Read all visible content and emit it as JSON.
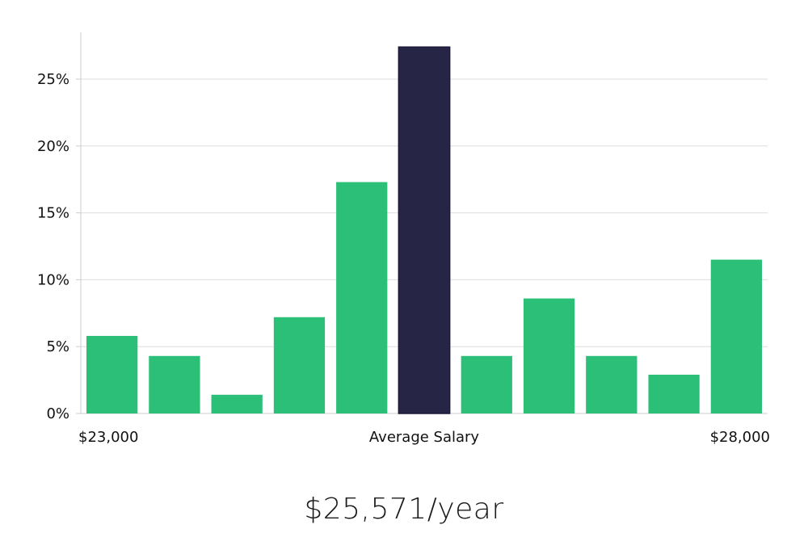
{
  "chart_data": {
    "type": "bar",
    "title": "",
    "ylabel": "",
    "ylim": [
      0,
      28.5
    ],
    "yticks": [
      0,
      5,
      10,
      15,
      20,
      25
    ],
    "ytick_labels": [
      "0%",
      "5%",
      "10%",
      "15%",
      "20%",
      "25%"
    ],
    "grid": true,
    "values": [
      5.8,
      4.3,
      1.4,
      7.2,
      17.3,
      27.4,
      4.3,
      8.6,
      4.3,
      2.9,
      11.5
    ],
    "highlight_index": 5,
    "x_label_left": "$23,000",
    "x_label_center": "Average Salary",
    "x_label_right": "$28,000"
  },
  "colors": {
    "bar": "#2bbf78",
    "highlight": "#272546",
    "grid": "#dddddd",
    "axis": "#cccccc"
  },
  "caption": {
    "salary": "$25,571/year"
  }
}
